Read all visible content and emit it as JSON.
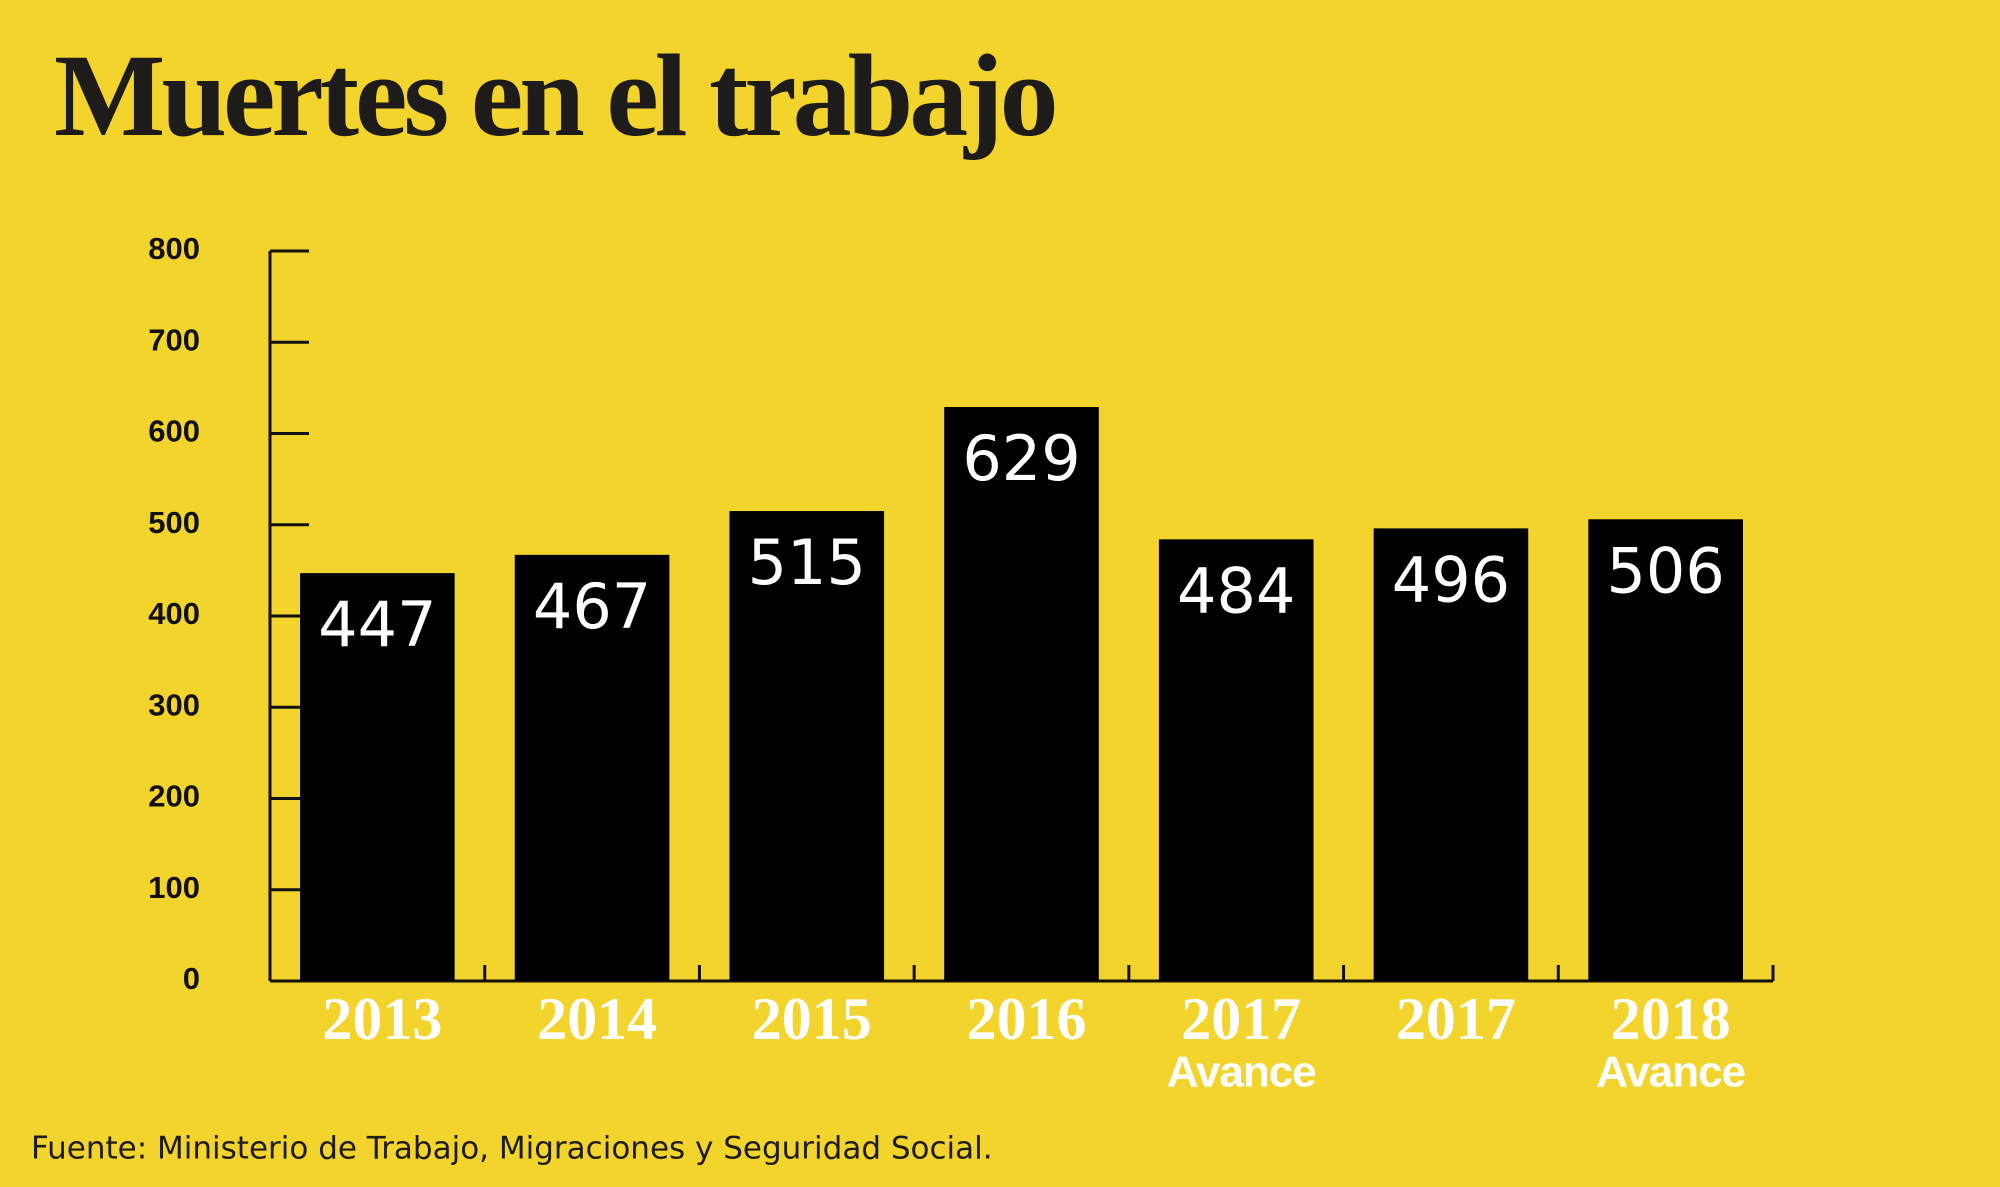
{
  "chart_data": {
    "type": "bar",
    "title": "Muertes en el trabajo",
    "categories": [
      "2013",
      "2014",
      "2015",
      "2016",
      "2017",
      "2017",
      "2018"
    ],
    "category_notes": [
      null,
      null,
      null,
      null,
      "Avance",
      null,
      "Avance"
    ],
    "values": [
      447,
      467,
      515,
      629,
      484,
      496,
      506
    ],
    "color": "#000000",
    "ylim": [
      0,
      800
    ],
    "yticks": [
      0,
      100,
      200,
      300,
      400,
      500,
      600,
      700,
      800
    ],
    "source": "Fuente: Ministerio de Trabajo, Migraciones y Seguridad Social."
  }
}
